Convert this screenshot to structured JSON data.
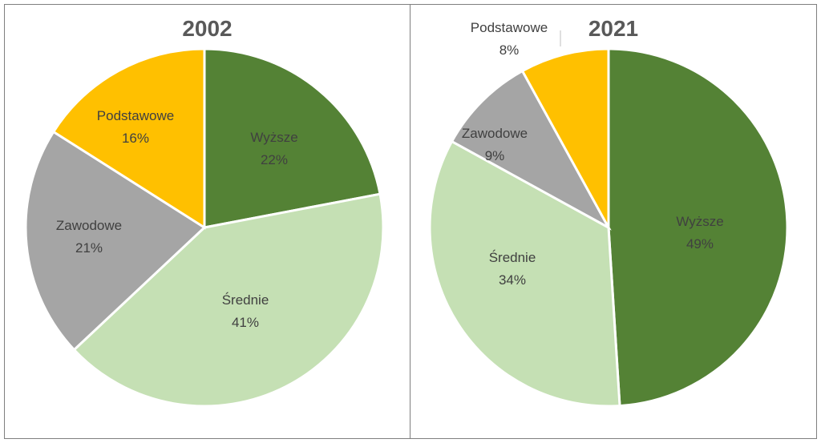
{
  "chart_data": [
    {
      "type": "pie",
      "title": "2002",
      "slices": [
        {
          "label": "Wyższe",
          "value": 22,
          "value_label": "22%",
          "color": "#548235"
        },
        {
          "label": "Średnie",
          "value": 41,
          "value_label": "41%",
          "color": "#c5e0b4"
        },
        {
          "label": "Zawodowe",
          "value": 21,
          "value_label": "21%",
          "color": "#a5a5a5"
        },
        {
          "label": "Podstawowe",
          "value": 16,
          "value_label": "16%",
          "color": "#ffc000"
        }
      ]
    },
    {
      "type": "pie",
      "title": "2021",
      "slices": [
        {
          "label": "Wyższe",
          "value": 49,
          "value_label": "49%",
          "color": "#548235"
        },
        {
          "label": "Średnie",
          "value": 34,
          "value_label": "34%",
          "color": "#c5e0b4"
        },
        {
          "label": "Zawodowe",
          "value": 9,
          "value_label": "9%",
          "color": "#a5a5a5"
        },
        {
          "label": "Podstawowe",
          "value": 8,
          "value_label": "8%",
          "color": "#ffc000"
        }
      ]
    }
  ]
}
